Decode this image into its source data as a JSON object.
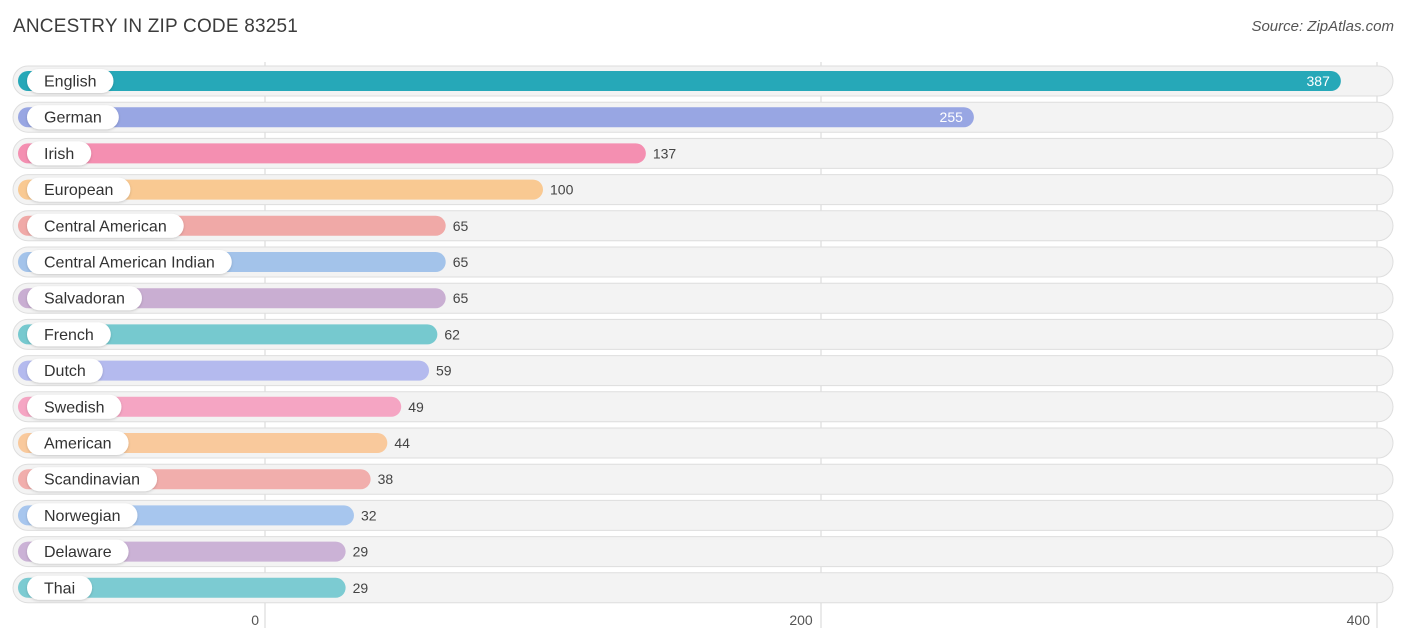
{
  "header": {
    "title": "ANCESTRY IN ZIP CODE 83251",
    "source": "Source: ZipAtlas.com"
  },
  "chart_data": {
    "type": "bar",
    "orientation": "horizontal",
    "title": "ANCESTRY IN ZIP CODE 83251",
    "xlabel": "",
    "ylabel": "",
    "xlim": [
      0,
      400
    ],
    "xticks": [
      0,
      200,
      400
    ],
    "grid": true,
    "categories": [
      "English",
      "German",
      "Irish",
      "European",
      "Central American",
      "Central American Indian",
      "Salvadoran",
      "French",
      "Dutch",
      "Swedish",
      "American",
      "Scandinavian",
      "Norwegian",
      "Delaware",
      "Thai"
    ],
    "values": [
      387,
      255,
      137,
      100,
      65,
      65,
      65,
      62,
      59,
      49,
      44,
      38,
      32,
      29,
      29
    ],
    "colors": [
      "#26a8b8",
      "#98a6e3",
      "#f48fb1",
      "#f9c992",
      "#f0a9a7",
      "#a3c3ea",
      "#c9aed2",
      "#76c9cf",
      "#b4baee",
      "#f5a5c3",
      "#f9c99c",
      "#f1aeac",
      "#a7c6ee",
      "#cbb2d6",
      "#7ccbd2"
    ]
  }
}
